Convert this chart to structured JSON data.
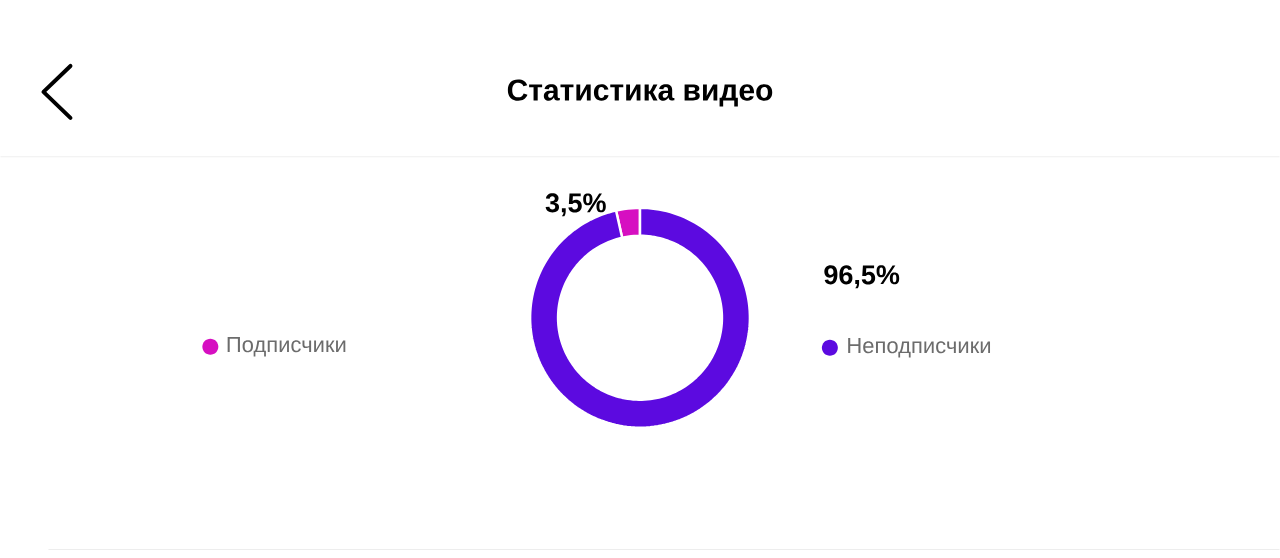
{
  "chart_data": {
    "type": "donut",
    "title": "Статистика видео",
    "categories": [
      "Подписчики",
      "Неподписчики"
    ],
    "values": [
      3.5,
      96.5
    ],
    "colors": [
      "#d60fc1",
      "#5c0ae0"
    ],
    "value_labels": [
      "3,5%",
      "96,5%"
    ],
    "legend": "center"
  }
}
